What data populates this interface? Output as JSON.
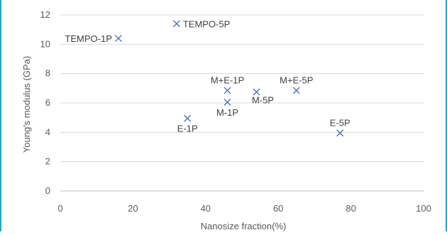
{
  "chart_data": {
    "type": "scatter",
    "xlabel": "Nanosize fraction(%)",
    "ylabel": "Young's modulus (GPa)",
    "xlim": [
      0,
      100
    ],
    "ylim": [
      0,
      12
    ],
    "x_ticks": [
      "0",
      "20",
      "40",
      "60",
      "80",
      "100"
    ],
    "y_ticks": [
      "0",
      "2",
      "4",
      "6",
      "8",
      "10",
      "12"
    ],
    "grid": "horizontal",
    "marker_color": "#4472c4",
    "points": [
      {
        "label": "TEMPO-1P",
        "x": 16,
        "y": 10.4,
        "label_pos": "left"
      },
      {
        "label": "TEMPO-5P",
        "x": 32,
        "y": 11.4,
        "label_pos": "right"
      },
      {
        "label": "E-1P",
        "x": 35,
        "y": 4.95,
        "label_pos": "below"
      },
      {
        "label": "M+E-1P",
        "x": 46,
        "y": 6.85,
        "label_pos": "above"
      },
      {
        "label": "M-1P",
        "x": 46,
        "y": 6.05,
        "label_pos": "below"
      },
      {
        "label": "M-5P",
        "x": 54,
        "y": 6.75,
        "label_pos": "below-right"
      },
      {
        "label": "M+E-5P",
        "x": 65,
        "y": 6.85,
        "label_pos": "above"
      },
      {
        "label": "E-5P",
        "x": 77,
        "y": 3.95,
        "label_pos": "above"
      }
    ]
  }
}
